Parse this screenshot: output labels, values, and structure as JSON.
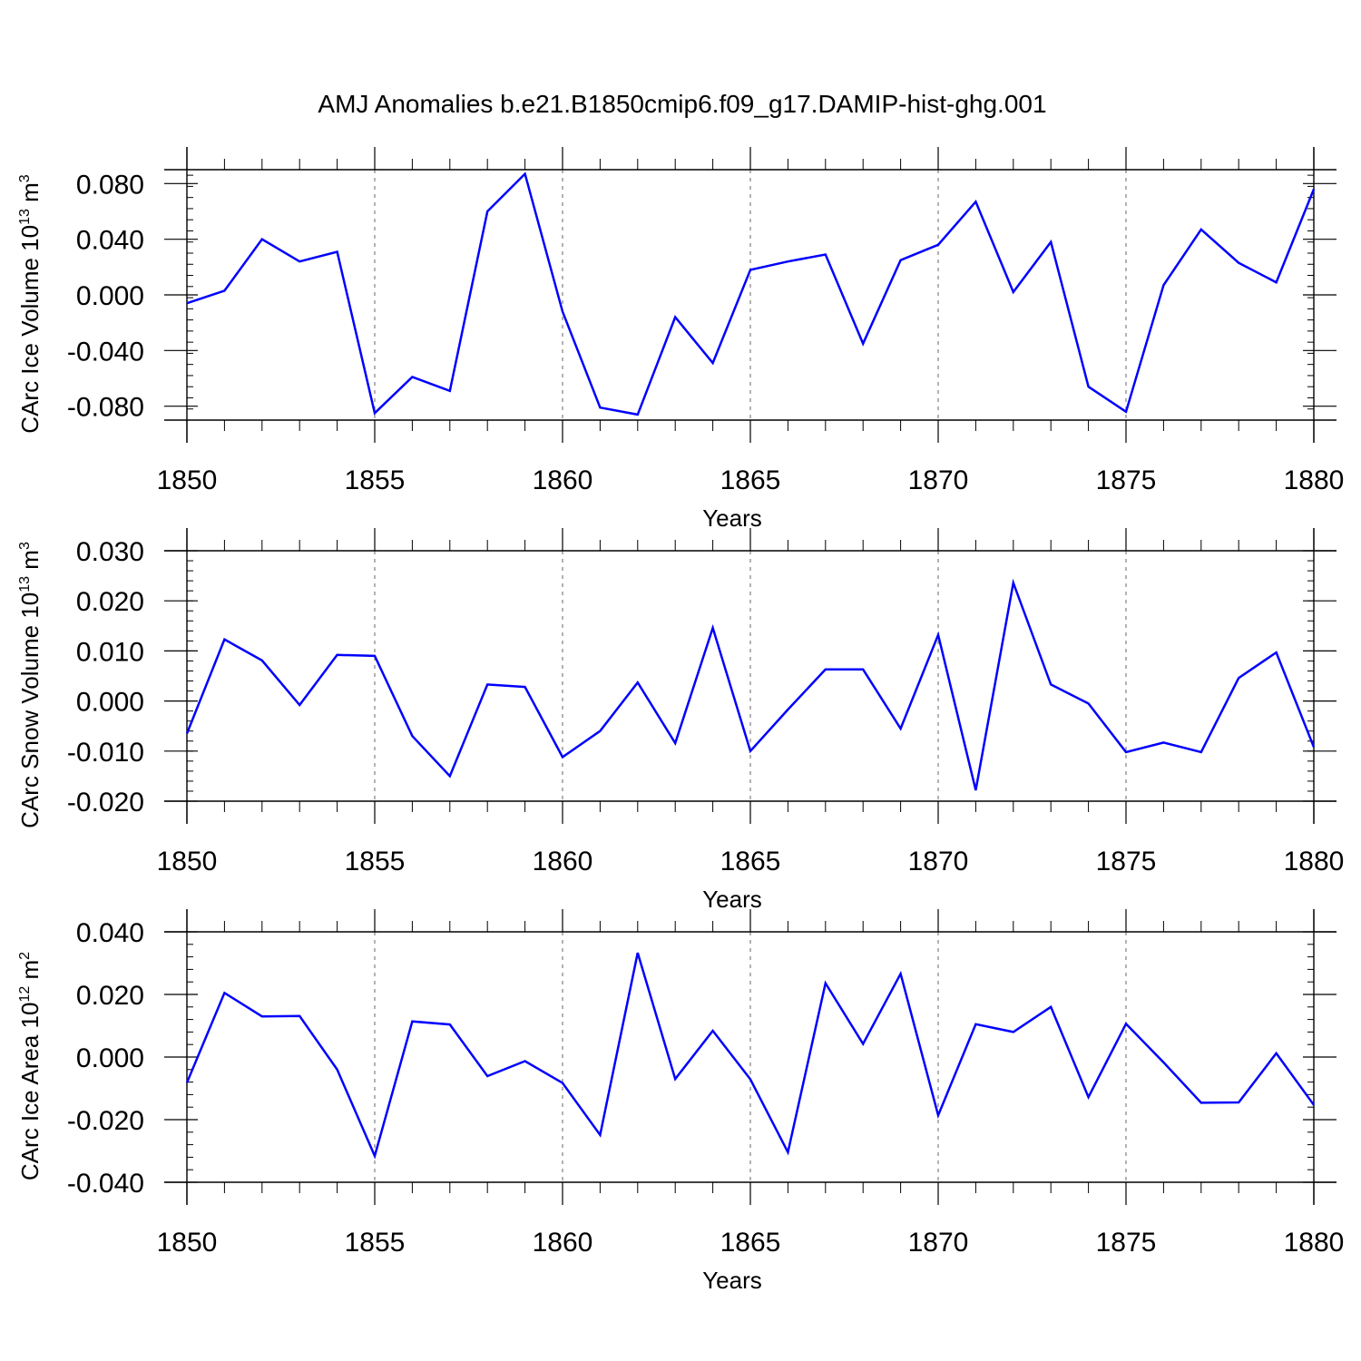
{
  "title": "AMJ Anomalies b.e21.B1850cmip6.f09_g17.DAMIP-hist-ghg.001",
  "colors": {
    "line": "#0000ff",
    "axis": "#000000",
    "grid": "#808080"
  },
  "chart_data": [
    {
      "type": "line",
      "ylabel": {
        "text": "CArc Ice Volume 10",
        "exponent": "13",
        "unit": "m",
        "unit_exponent": "3"
      },
      "xlabel": "Years",
      "xlim": [
        1850,
        1880
      ],
      "ylim": [
        -0.09,
        0.09
      ],
      "x_major_ticks": [
        1850,
        1855,
        1860,
        1865,
        1870,
        1875,
        1880
      ],
      "x_tick_labels": [
        "1850",
        "1855",
        "1860",
        "1865",
        "1870",
        "1875",
        "1880"
      ],
      "y_major_ticks": [
        -0.08,
        -0.04,
        0.0,
        0.04,
        0.08
      ],
      "y_tick_labels": [
        "-0.080",
        "-0.040",
        "0.000",
        "0.040",
        "0.080"
      ],
      "y_minor_step": 0.008,
      "grid_x": "dashed at labeled years",
      "series": [
        {
          "name": "CArc Ice Volume",
          "x": [
            1850,
            1851,
            1852,
            1853,
            1854,
            1855,
            1856,
            1857,
            1858,
            1859,
            1860,
            1861,
            1862,
            1863,
            1864,
            1865,
            1866,
            1867,
            1868,
            1869,
            1870,
            1871,
            1872,
            1873,
            1874,
            1875,
            1876,
            1877,
            1878,
            1879,
            1880
          ],
          "values": [
            -0.006,
            0.003,
            0.04,
            0.024,
            0.031,
            -0.085,
            -0.059,
            -0.069,
            0.06,
            0.087,
            -0.012,
            -0.081,
            -0.086,
            -0.016,
            -0.049,
            0.018,
            0.024,
            0.029,
            -0.035,
            0.025,
            0.036,
            0.067,
            0.002,
            0.038,
            -0.066,
            -0.084,
            0.007,
            0.047,
            0.023,
            0.009,
            0.076
          ]
        }
      ]
    },
    {
      "type": "line",
      "ylabel": {
        "text": "CArc Snow Volume 10",
        "exponent": "13",
        "unit": "m",
        "unit_exponent": "3"
      },
      "xlabel": "Years",
      "xlim": [
        1850,
        1880
      ],
      "ylim": [
        -0.02,
        0.03
      ],
      "x_major_ticks": [
        1850,
        1855,
        1860,
        1865,
        1870,
        1875,
        1880
      ],
      "x_tick_labels": [
        "1850",
        "1855",
        "1860",
        "1865",
        "1870",
        "1875",
        "1880"
      ],
      "y_major_ticks": [
        -0.02,
        -0.01,
        0.0,
        0.01,
        0.02,
        0.03
      ],
      "y_tick_labels": [
        "-0.020",
        "-0.010",
        "0.000",
        "0.010",
        "0.020",
        "0.030"
      ],
      "y_minor_step": 0.002,
      "grid_x": "dashed at labeled years",
      "series": [
        {
          "name": "CArc Snow Volume",
          "x": [
            1850,
            1851,
            1852,
            1853,
            1854,
            1855,
            1856,
            1857,
            1858,
            1859,
            1860,
            1861,
            1862,
            1863,
            1864,
            1865,
            1866,
            1867,
            1868,
            1869,
            1870,
            1871,
            1872,
            1873,
            1874,
            1875,
            1876,
            1877,
            1878,
            1879,
            1880
          ],
          "values": [
            -0.0065,
            0.0123,
            0.0081,
            -0.0008,
            0.0092,
            0.009,
            -0.007,
            -0.015,
            0.0033,
            0.0028,
            -0.0112,
            -0.006,
            0.0037,
            -0.0084,
            0.0146,
            -0.01,
            -0.0017,
            0.0063,
            0.0063,
            -0.0055,
            0.0132,
            -0.0178,
            0.0236,
            0.0033,
            -0.0005,
            -0.0102,
            -0.0083,
            -0.0102,
            0.0046,
            0.0097,
            -0.0092
          ]
        }
      ]
    },
    {
      "type": "line",
      "ylabel": {
        "text": "CArc Ice Area 10",
        "exponent": "12",
        "unit": "m",
        "unit_exponent": "2"
      },
      "xlabel": "Years",
      "xlim": [
        1850,
        1880
      ],
      "ylim": [
        -0.04,
        0.04
      ],
      "x_major_ticks": [
        1850,
        1855,
        1860,
        1865,
        1870,
        1875,
        1880
      ],
      "x_tick_labels": [
        "1850",
        "1855",
        "1860",
        "1865",
        "1870",
        "1875",
        "1880"
      ],
      "y_major_ticks": [
        -0.04,
        -0.02,
        0.0,
        0.02,
        0.04
      ],
      "y_tick_labels": [
        "-0.040",
        "-0.020",
        "0.000",
        "0.020",
        "0.040"
      ],
      "y_minor_step": 0.004,
      "grid_x": "dashed at labeled years",
      "series": [
        {
          "name": "CArc Ice Area",
          "x": [
            1850,
            1851,
            1852,
            1853,
            1854,
            1855,
            1856,
            1857,
            1858,
            1859,
            1860,
            1861,
            1862,
            1863,
            1864,
            1865,
            1866,
            1867,
            1868,
            1869,
            1870,
            1871,
            1872,
            1873,
            1874,
            1875,
            1876,
            1877,
            1878,
            1879,
            1880
          ],
          "values": [
            -0.0082,
            0.0205,
            0.013,
            0.0131,
            -0.004,
            -0.0316,
            0.0114,
            0.0104,
            -0.0061,
            -0.0013,
            -0.0083,
            -0.0249,
            0.0333,
            -0.007,
            0.0084,
            -0.0071,
            -0.0304,
            0.0236,
            0.0042,
            0.0266,
            -0.0186,
            0.0105,
            0.008,
            0.016,
            -0.0128,
            0.0106,
            -0.0017,
            -0.0146,
            -0.0145,
            0.0012,
            -0.0153
          ]
        }
      ]
    }
  ]
}
